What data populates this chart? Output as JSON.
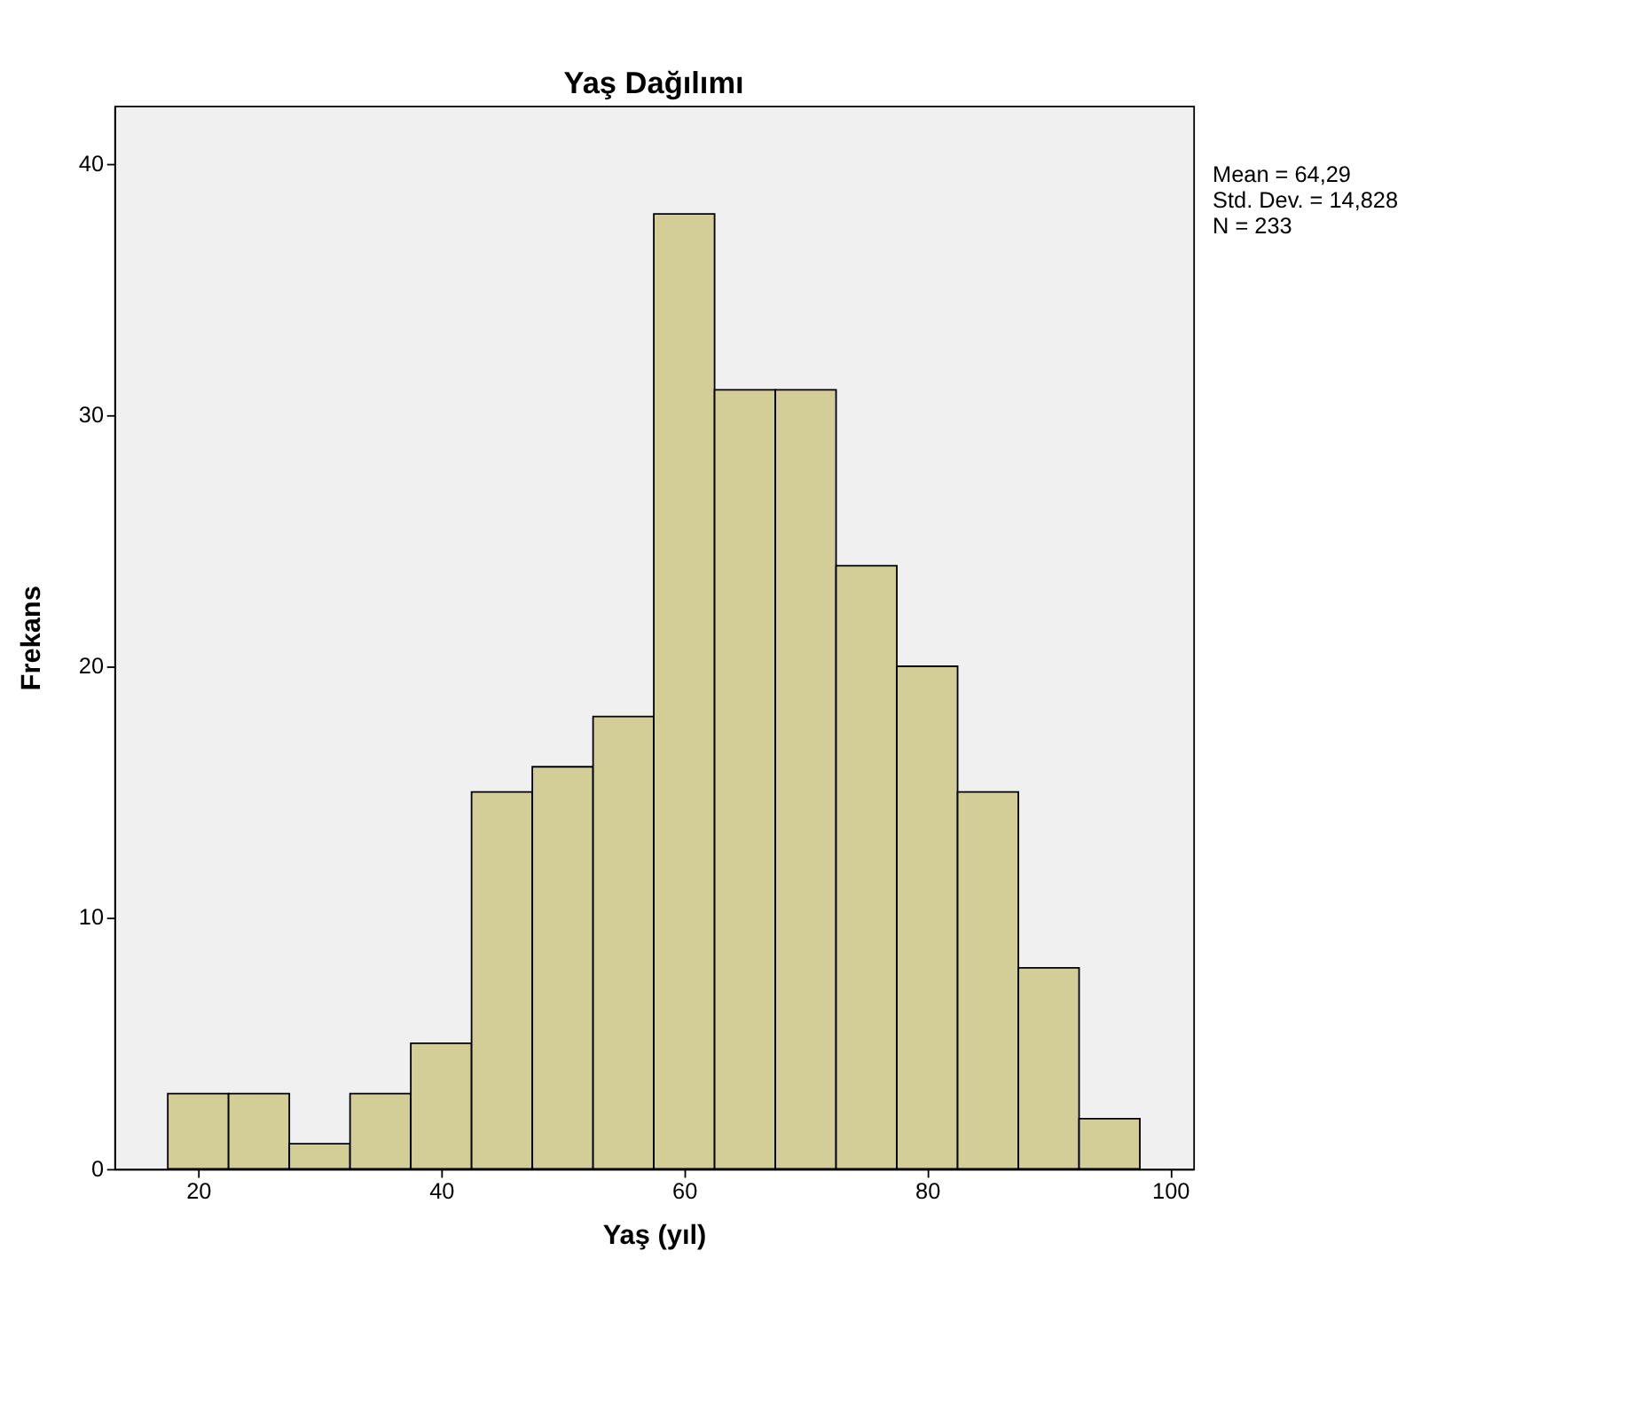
{
  "chart_data": {
    "type": "histogram",
    "title": "Yaş Dağılımı",
    "xlabel": "Yaş (yıl)",
    "ylabel": "Frekans",
    "bins": [
      17.5,
      22.5,
      27.5,
      32.5,
      37.5,
      42.5,
      47.5,
      52.5,
      57.5,
      62.5,
      67.5,
      72.5,
      77.5,
      82.5,
      87.5,
      92.5,
      97.5
    ],
    "values": [
      3,
      3,
      1,
      3,
      5,
      15,
      16,
      18,
      38,
      31,
      31,
      24,
      20,
      15,
      8,
      2
    ],
    "color": "#d3ce97",
    "xlim": [
      13.1,
      101.9
    ],
    "xticks": [
      20,
      40,
      60,
      80,
      100
    ],
    "ylim": [
      0,
      42.3
    ],
    "yticks": [
      0,
      10,
      20,
      30,
      40
    ],
    "grid": false,
    "annotations": [
      "Mean = 64,29",
      "Std. Dev. = 14,828",
      "N = 233"
    ]
  }
}
